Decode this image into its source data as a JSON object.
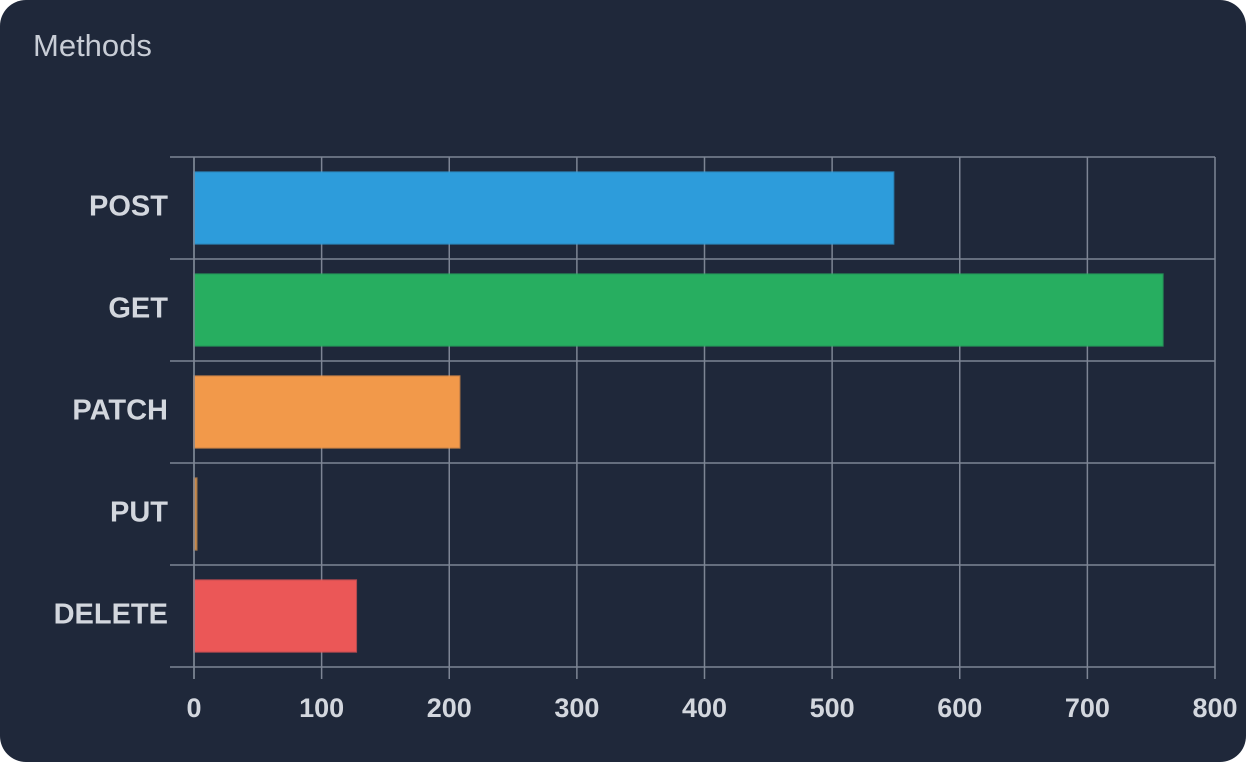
{
  "chart_data": {
    "type": "bar",
    "orientation": "horizontal",
    "title": "Methods",
    "categories": [
      "POST",
      "GET",
      "PATCH",
      "PUT",
      "DELETE"
    ],
    "values": [
      548,
      759,
      208,
      2,
      127
    ],
    "colors": [
      "#2d9cdb",
      "#27ae60",
      "#f2994a",
      "#c98a4b",
      "#eb5757"
    ],
    "xlim": [
      0,
      800
    ],
    "xticks": [
      0,
      100,
      200,
      300,
      400,
      500,
      600,
      700,
      800
    ],
    "grid": true
  }
}
